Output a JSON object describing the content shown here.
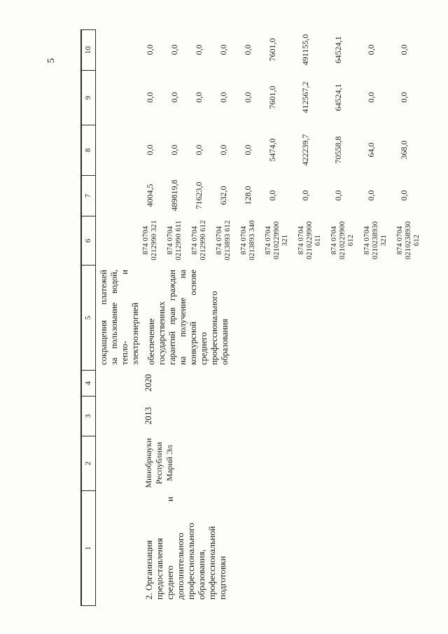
{
  "page_number": "5",
  "table": {
    "col_headers": [
      "1",
      "2",
      "3",
      "4",
      "5",
      "6",
      "7",
      "8",
      "9",
      "10"
    ],
    "row": {
      "program_name_lines": [
        [
          "2. Организация"
        ],
        [
          "предоставления"
        ],
        [
          "среднего",
          "и"
        ],
        [
          "дополнительного"
        ],
        [
          "профессионального"
        ],
        [
          "образования,"
        ],
        [
          "профессиональной"
        ],
        [
          "подготовки"
        ]
      ],
      "executor_lines": [
        [
          "Минобрнауки"
        ],
        [
          "Республики"
        ],
        [
          "Марий Эл"
        ]
      ],
      "year_start": "2013",
      "year_end": "2020",
      "expected_results_para1_lines": [
        [
          "сокращения",
          "платежей"
        ],
        [
          "за",
          "пользование",
          "водой,"
        ],
        [
          "тепло-",
          "и"
        ],
        [
          "электроэнергией"
        ]
      ],
      "expected_results_para2_lines": [
        [
          "обеспечение"
        ],
        [
          "государственных"
        ],
        [
          "гарантий",
          "прав",
          "граждан"
        ],
        [
          "на",
          "получение",
          "на"
        ],
        [
          "конкурсной",
          "основе"
        ],
        [
          "среднего"
        ],
        [
          "профессионального"
        ],
        [
          "образования"
        ]
      ],
      "funding_rows": [
        {
          "code_lines": [
            "874 0704",
            "0212990 321"
          ],
          "values": [
            "4004,5",
            "0,0",
            "0,0",
            "0,0"
          ]
        },
        {
          "code_lines": [
            "874 0704",
            "0212990 611"
          ],
          "values": [
            "489819,8",
            "0,0",
            "0,0",
            "0,0"
          ]
        },
        {
          "code_lines": [
            "874 0704",
            "0212990 612"
          ],
          "values": [
            "71623,0",
            "0,0",
            "0,0",
            "0,0"
          ]
        },
        {
          "code_lines": [
            "874 0704",
            "0213893 612"
          ],
          "values": [
            "632,0",
            "0,0",
            "0,0",
            "0,0"
          ]
        },
        {
          "code_lines": [
            "874 0704",
            "0213893 340"
          ],
          "values": [
            "128,0",
            "0,0",
            "0,0",
            "0,0"
          ]
        },
        {
          "code_lines": [
            "874 0704",
            "0210229900",
            "321"
          ],
          "values": [
            "0,0",
            "5474,0",
            "7601,0",
            "7601,0"
          ]
        },
        {
          "code_lines": [
            "874 0704",
            "0210229900",
            "611"
          ],
          "values": [
            "0,0",
            "422239,7",
            "412567,2",
            "491155,0"
          ]
        },
        {
          "code_lines": [
            "874 0704",
            "0210229900",
            "612"
          ],
          "values": [
            "0,0",
            "70558,8",
            "64524,1",
            "64524,1"
          ]
        },
        {
          "code_lines": [
            "874 0704",
            "0210238930",
            "321"
          ],
          "values": [
            "0,0",
            "64,0",
            "0,0",
            "0,0"
          ]
        },
        {
          "code_lines": [
            "874 0704",
            "0210238930",
            "612"
          ],
          "values": [
            "0,0",
            "368,0",
            "0,0",
            "0,0"
          ]
        }
      ]
    }
  }
}
